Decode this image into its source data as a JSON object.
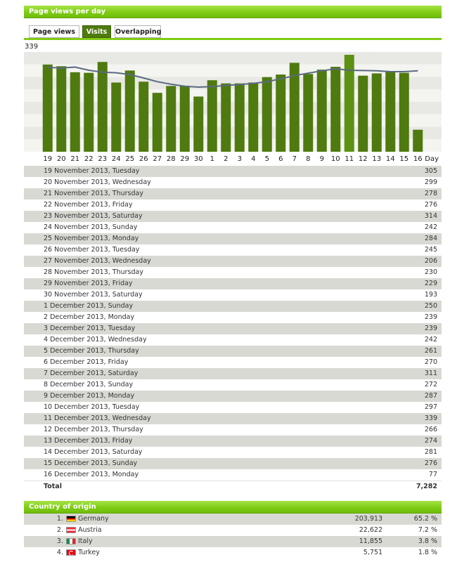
{
  "header": {
    "title": "Page views per day"
  },
  "tabs": [
    {
      "label": "Page views",
      "active": false
    },
    {
      "label": "Visits",
      "active": true
    },
    {
      "label": "Overlapping",
      "active": false
    }
  ],
  "chart_data": {
    "type": "bar",
    "ymax_label": "339",
    "x_axis_label": "Day",
    "ylim": [
      0,
      339
    ],
    "grid": true,
    "bar_color": "#4f7a0f",
    "highlight_color": "#5c9114",
    "trend_color": "#5a6a80",
    "categories": [
      "19",
      "20",
      "21",
      "22",
      "23",
      "24",
      "25",
      "26",
      "27",
      "28",
      "29",
      "30",
      "1",
      "2",
      "3",
      "4",
      "5",
      "6",
      "7",
      "8",
      "9",
      "10",
      "11",
      "12",
      "13",
      "14",
      "15",
      "16"
    ],
    "values": [
      305,
      299,
      278,
      276,
      314,
      242,
      284,
      245,
      206,
      230,
      229,
      193,
      250,
      239,
      239,
      242,
      261,
      270,
      311,
      272,
      287,
      297,
      339,
      266,
      274,
      281,
      276,
      77
    ],
    "trend": [
      295,
      293,
      296,
      285,
      278,
      276,
      270,
      258,
      245,
      236,
      229,
      226,
      228,
      232,
      235,
      239,
      245,
      255,
      266,
      275,
      283,
      290,
      285,
      284,
      283,
      280,
      280,
      283
    ]
  },
  "daily_table": {
    "rows": [
      {
        "label": "19 November 2013, Tuesday",
        "value": "305"
      },
      {
        "label": "20 November 2013, Wednesday",
        "value": "299"
      },
      {
        "label": "21 November 2013, Thursday",
        "value": "278"
      },
      {
        "label": "22 November 2013, Friday",
        "value": "276"
      },
      {
        "label": "23 November 2013, Saturday",
        "value": "314"
      },
      {
        "label": "24 November 2013, Sunday",
        "value": "242"
      },
      {
        "label": "25 November 2013, Monday",
        "value": "284"
      },
      {
        "label": "26 November 2013, Tuesday",
        "value": "245"
      },
      {
        "label": "27 November 2013, Wednesday",
        "value": "206"
      },
      {
        "label": "28 November 2013, Thursday",
        "value": "230"
      },
      {
        "label": "29 November 2013, Friday",
        "value": "229"
      },
      {
        "label": "30 November 2013, Saturday",
        "value": "193"
      },
      {
        "label": "1 December 2013, Sunday",
        "value": "250"
      },
      {
        "label": "2 December 2013, Monday",
        "value": "239"
      },
      {
        "label": "3 December 2013, Tuesday",
        "value": "239"
      },
      {
        "label": "4 December 2013, Wednesday",
        "value": "242"
      },
      {
        "label": "5 December 2013, Thursday",
        "value": "261"
      },
      {
        "label": "6 December 2013, Friday",
        "value": "270"
      },
      {
        "label": "7 December 2013, Saturday",
        "value": "311"
      },
      {
        "label": "8 December 2013, Sunday",
        "value": "272"
      },
      {
        "label": "9 December 2013, Monday",
        "value": "287"
      },
      {
        "label": "10 December 2013, Tuesday",
        "value": "297"
      },
      {
        "label": "11 December 2013, Wednesday",
        "value": "339"
      },
      {
        "label": "12 December 2013, Thursday",
        "value": "266"
      },
      {
        "label": "13 December 2013, Friday",
        "value": "274"
      },
      {
        "label": "14 December 2013, Saturday",
        "value": "281"
      },
      {
        "label": "15 December 2013, Sunday",
        "value": "276"
      },
      {
        "label": "16 December 2013, Monday",
        "value": "77"
      }
    ],
    "total_label": "Total",
    "total_value": "7,282"
  },
  "country": {
    "title": "Country of origin",
    "rows": [
      {
        "rank": "1.",
        "flag": "germany-flag-icon",
        "name": "Germany",
        "count": "203,913",
        "pct": "65.2 %"
      },
      {
        "rank": "2.",
        "flag": "austria-flag-icon",
        "name": "Austria",
        "count": "22,622",
        "pct": "7.2 %"
      },
      {
        "rank": "3.",
        "flag": "italy-flag-icon",
        "name": "Italy",
        "count": "11,855",
        "pct": "3.8 %"
      },
      {
        "rank": "4.",
        "flag": "turkey-flag-icon",
        "name": "Turkey",
        "count": "5,751",
        "pct": "1.8 %"
      }
    ]
  }
}
